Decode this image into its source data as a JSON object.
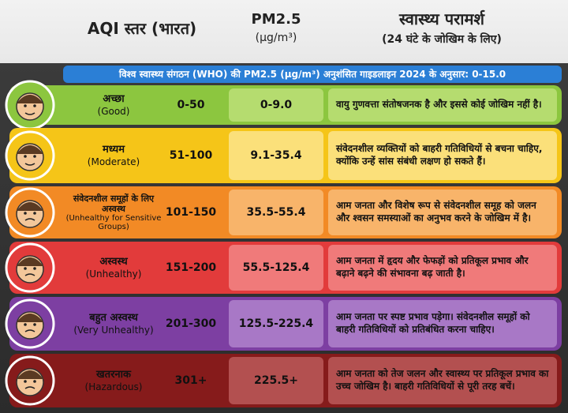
{
  "header": {
    "aqi": "AQI स्तर (भारत)",
    "pm": "PM2.5",
    "pm_unit": "(µg/m³)",
    "advice": "स्वास्थ्य परामर्श",
    "advice_sub": "(24 घंटे के जोखिम के लिए)"
  },
  "banner": "विश्व स्वास्थ्य संगठन (WHO) की PM2.5 (µg/m³) अनुशंसित गाइडलाइन 2024 के अनुसार: 0-15.0",
  "rows": [
    {
      "level": "अच्छा",
      "english": "(Good)",
      "aqi": "0-50",
      "pm": "0-9.0",
      "advice": "वायु गुणवत्ता संतोषजनक है और इससे कोई जोखिम नहीं है।"
    },
    {
      "level": "मध्यम",
      "english": "(Moderate)",
      "aqi": "51-100",
      "pm": "9.1-35.4",
      "advice": "संवेदनशील व्यक्तियों को बाहरी गतिविधियों से बचना चाहिए, क्योंकि उन्हें सांस संबंधी लक्षण हो सकते हैं।"
    },
    {
      "level": "संवेदनशील समूहों के लिए अस्वस्थ",
      "english": "(Unhealthy for Sensitive Groups)",
      "aqi": "101-150",
      "pm": "35.5-55.4",
      "advice": "आम जनता और विशेष रूप से संवेदनशील समूह को जलन और श्वसन समस्याओं का अनुभव करने के जोखिम में है।"
    },
    {
      "level": "अस्वस्थ",
      "english": "(Unhealthy)",
      "aqi": "151-200",
      "pm": "55.5-125.4",
      "advice": "आम जनता में हृदय और फेफड़ों को प्रतिकूल प्रभाव और बढ़ाने बढ़ने की संभावना बढ़ जाती है।"
    },
    {
      "level": "बहुत अस्वस्थ",
      "english": "(Very Unhealthy)",
      "aqi": "201-300",
      "pm": "125.5-225.4",
      "advice": "आम जनता पर स्पष्ट प्रभाव पड़ेगा। संवेदनशील समूहों को बाहरी गतिविधियों को प्रतिबंधित करना चाहिए।"
    },
    {
      "level": "खतरनाक",
      "english": "(Hazardous)",
      "aqi": "301+",
      "pm": "225.5+",
      "advice": "आम जनता को तेज जलन और स्वास्थ्य पर प्रतिकूल प्रभाव का उच्च जोखिम है। बाहरी गतिविधियों से पूरी तरह बचें।"
    }
  ]
}
